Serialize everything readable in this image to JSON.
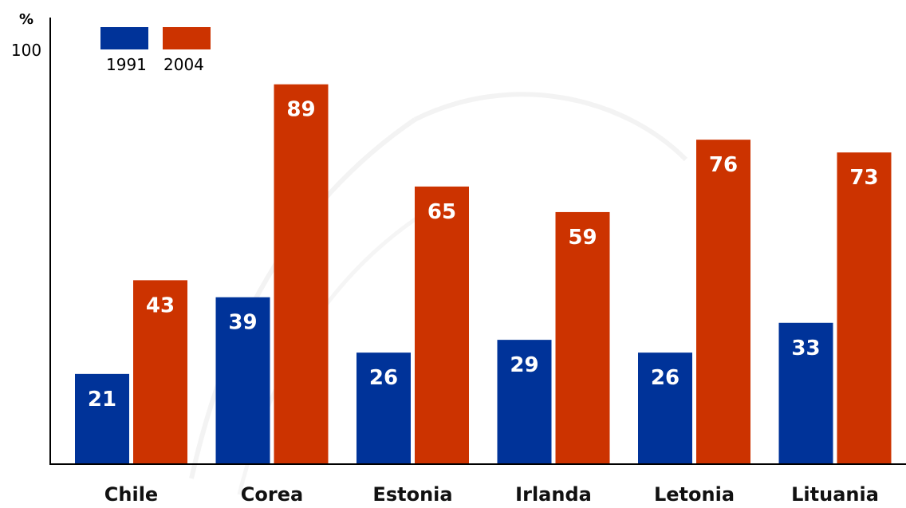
{
  "chart_data": {
    "type": "bar",
    "ylabel": "%",
    "ylim": [
      0,
      100
    ],
    "ytick_labels": [
      "100"
    ],
    "categories": [
      "Chile",
      "Corea",
      "Estonia",
      "Irlanda",
      "Letonia",
      "Lituania"
    ],
    "series": [
      {
        "name": "1991",
        "color": "#003399",
        "values": [
          21,
          39,
          26,
          29,
          26,
          33
        ]
      },
      {
        "name": "2004",
        "color": "#cc3300",
        "values": [
          43,
          89,
          65,
          59,
          76,
          73
        ]
      }
    ],
    "legend_position": "top-left",
    "grid": false
  }
}
